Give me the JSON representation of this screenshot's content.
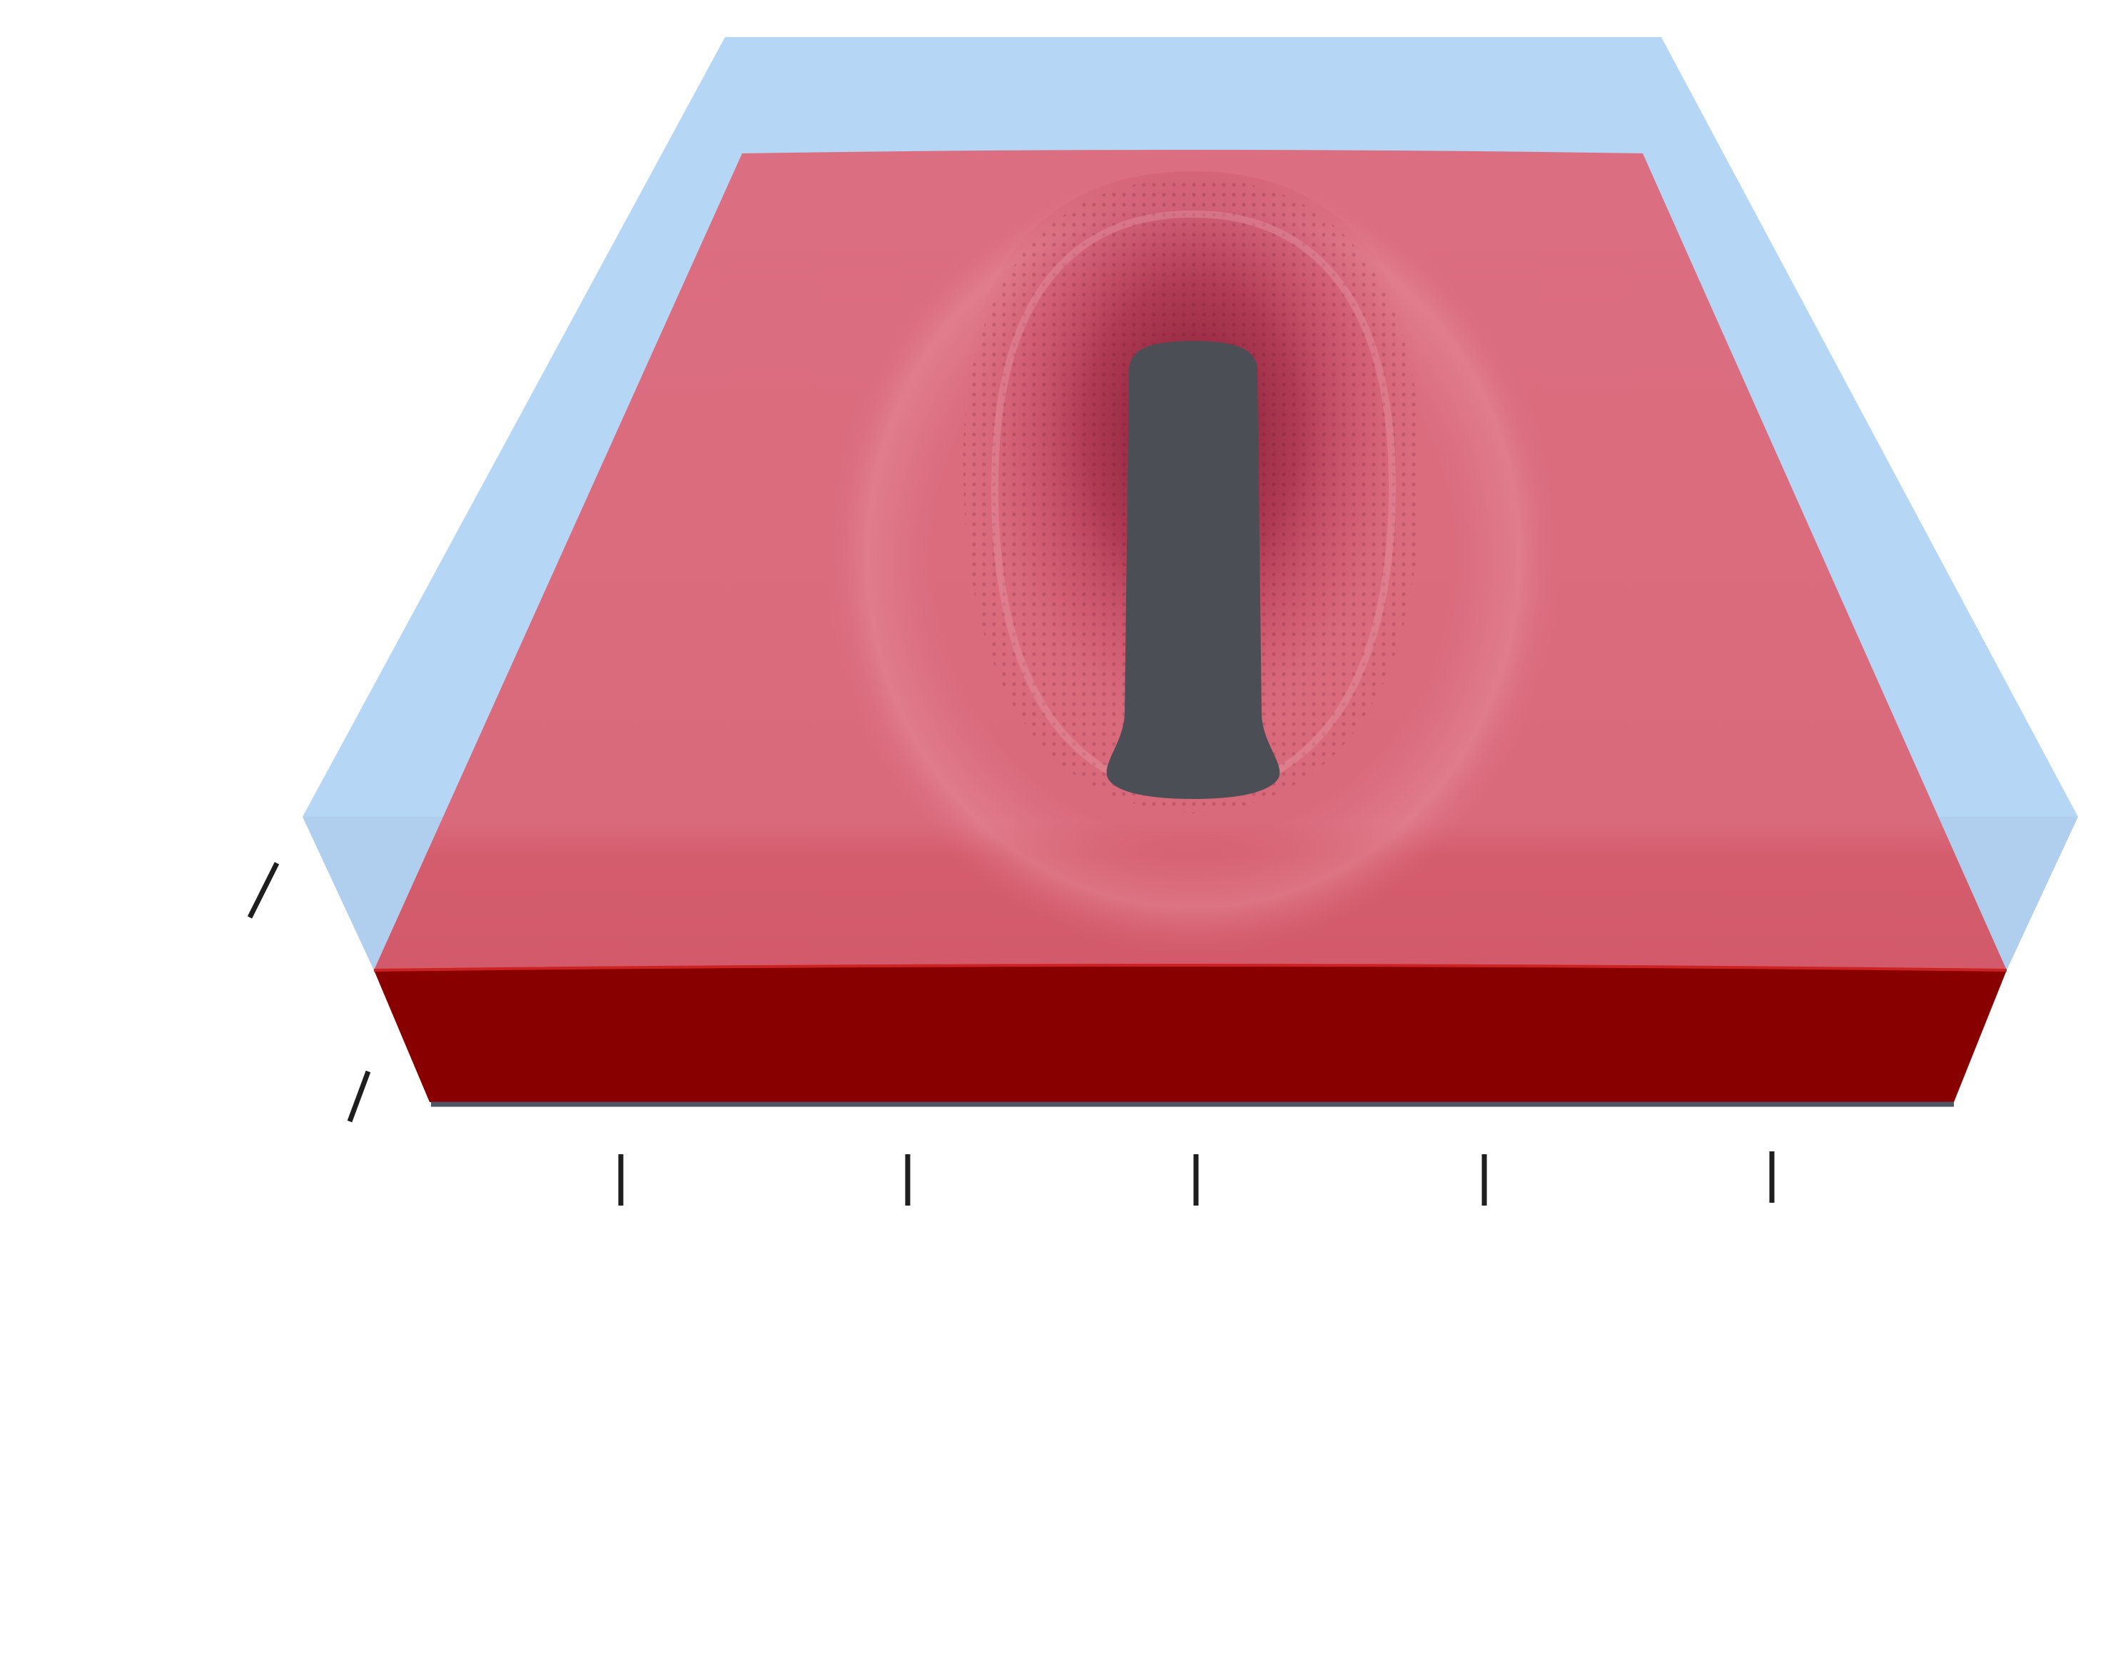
{
  "colors": {
    "background": "#ffffff",
    "water_layer": "#b6d6f6",
    "water_layer_front": "#b0cfee",
    "film_top": "#d96a7c",
    "film_top_front_band": "#d45d6d",
    "film_front_face": "#880000",
    "film_front_edge": "#cc2222",
    "substrate_edge": "#4e5565",
    "dewetted_hole": "#4b4f55",
    "depression_dark": "#8a1e36",
    "tick_marks": "#1e1e1e"
  },
  "icons": {
    "x_axis_ticks": "vertical-tick-marks",
    "z_axis_ticks": "slanted-tick-marks"
  }
}
